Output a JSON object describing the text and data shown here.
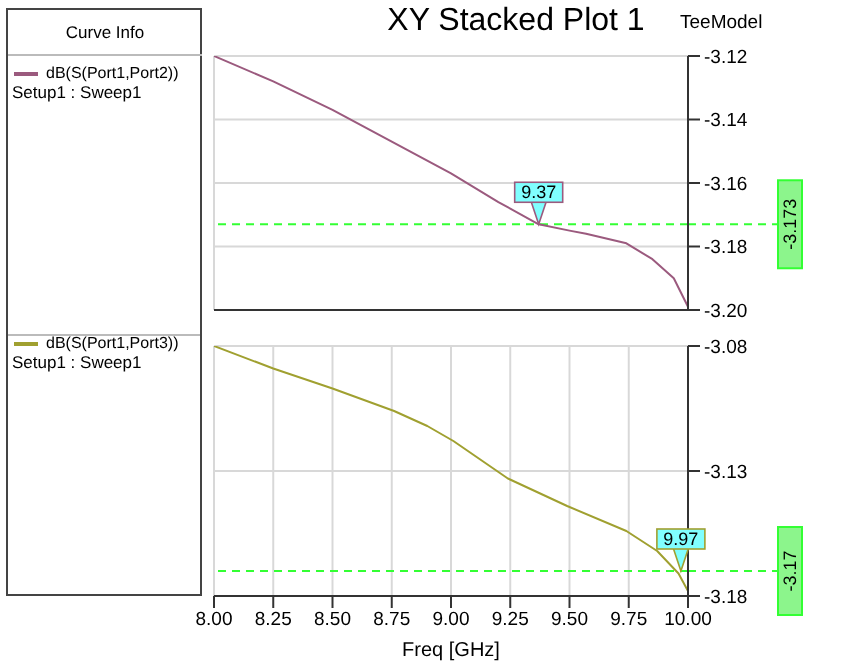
{
  "chart_data": [
    {
      "type": "line",
      "title": "XY Stacked Plot 1",
      "legend_title": "Curve Info",
      "legend": "left",
      "grid": true,
      "tick_labels": "y",
      "annotations": [
        "TeeModel",
        "Setup1 : Sweep1",
        {
          "text": "9.37",
          "x": 9.37,
          "y": -3.173
        }
      ],
      "xlim": [
        8,
        10
      ],
      "xticks": [
        8,
        8.25,
        8.5,
        8.75,
        9,
        9.25,
        9.5,
        9.75,
        10
      ],
      "ylim": [
        -3.2,
        -3.12
      ],
      "yticks": [
        -3.12,
        -3.14,
        -3.16,
        -3.18,
        {
          "value": -3.2,
          "label": "-3.20"
        }
      ],
      "ref_lines": [
        {
          "axis": "y",
          "value": -3.173,
          "label": "-3.173",
          "color": "#33ff33",
          "line_style": "dashed"
        }
      ],
      "series": [
        {
          "name": "dB(S(Port1,Port2))",
          "color": "#9b5a7e",
          "x": [
            8,
            8.25,
            8.5,
            8.75,
            9,
            9.2,
            9.37,
            9.5,
            9.57,
            9.74,
            9.85,
            9.94,
            10
          ],
          "values": [
            -3.12,
            -3.128,
            -3.137,
            -3.147,
            -3.157,
            -3.166,
            -3.173,
            -3.175,
            -3.176,
            -3.179,
            -3.184,
            -3.19,
            -3.199
          ]
        }
      ]
    },
    {
      "type": "line",
      "xlabel": "Freq [GHz]",
      "legend": "left",
      "grid": true,
      "annotations": [
        "Setup1 : Sweep1",
        {
          "text": "9.97",
          "x": 9.97,
          "y": -3.17
        }
      ],
      "xlim": [
        8,
        10
      ],
      "xticks": [
        {
          "value": 8,
          "label": "8.00"
        },
        8.25,
        {
          "value": 8.5,
          "label": "8.50"
        },
        8.75,
        {
          "value": 9,
          "label": "9.00"
        },
        9.25,
        {
          "value": 9.5,
          "label": "9.50"
        },
        9.75,
        {
          "value": 10,
          "label": "10.00"
        }
      ],
      "ylim": [
        -3.18,
        -3.08
      ],
      "yticks": [
        -3.08,
        -3.13,
        -3.18
      ],
      "ref_lines": [
        {
          "axis": "y",
          "value": -3.17,
          "label": "-3.17",
          "color": "#33ff33",
          "line_style": "dashed"
        }
      ],
      "series": [
        {
          "name": "dB(S(Port1,Port3))",
          "color": "#a0a030",
          "x": [
            8,
            8.25,
            8.5,
            8.76,
            8.9,
            9.01,
            9.24,
            9.49,
            9.74,
            9.87,
            9.96,
            10
          ],
          "values": [
            -3.08,
            -3.089,
            -3.097,
            -3.106,
            -3.112,
            -3.118,
            -3.133,
            -3.144,
            -3.154,
            -3.162,
            -3.171,
            -3.178
          ]
        }
      ]
    }
  ]
}
